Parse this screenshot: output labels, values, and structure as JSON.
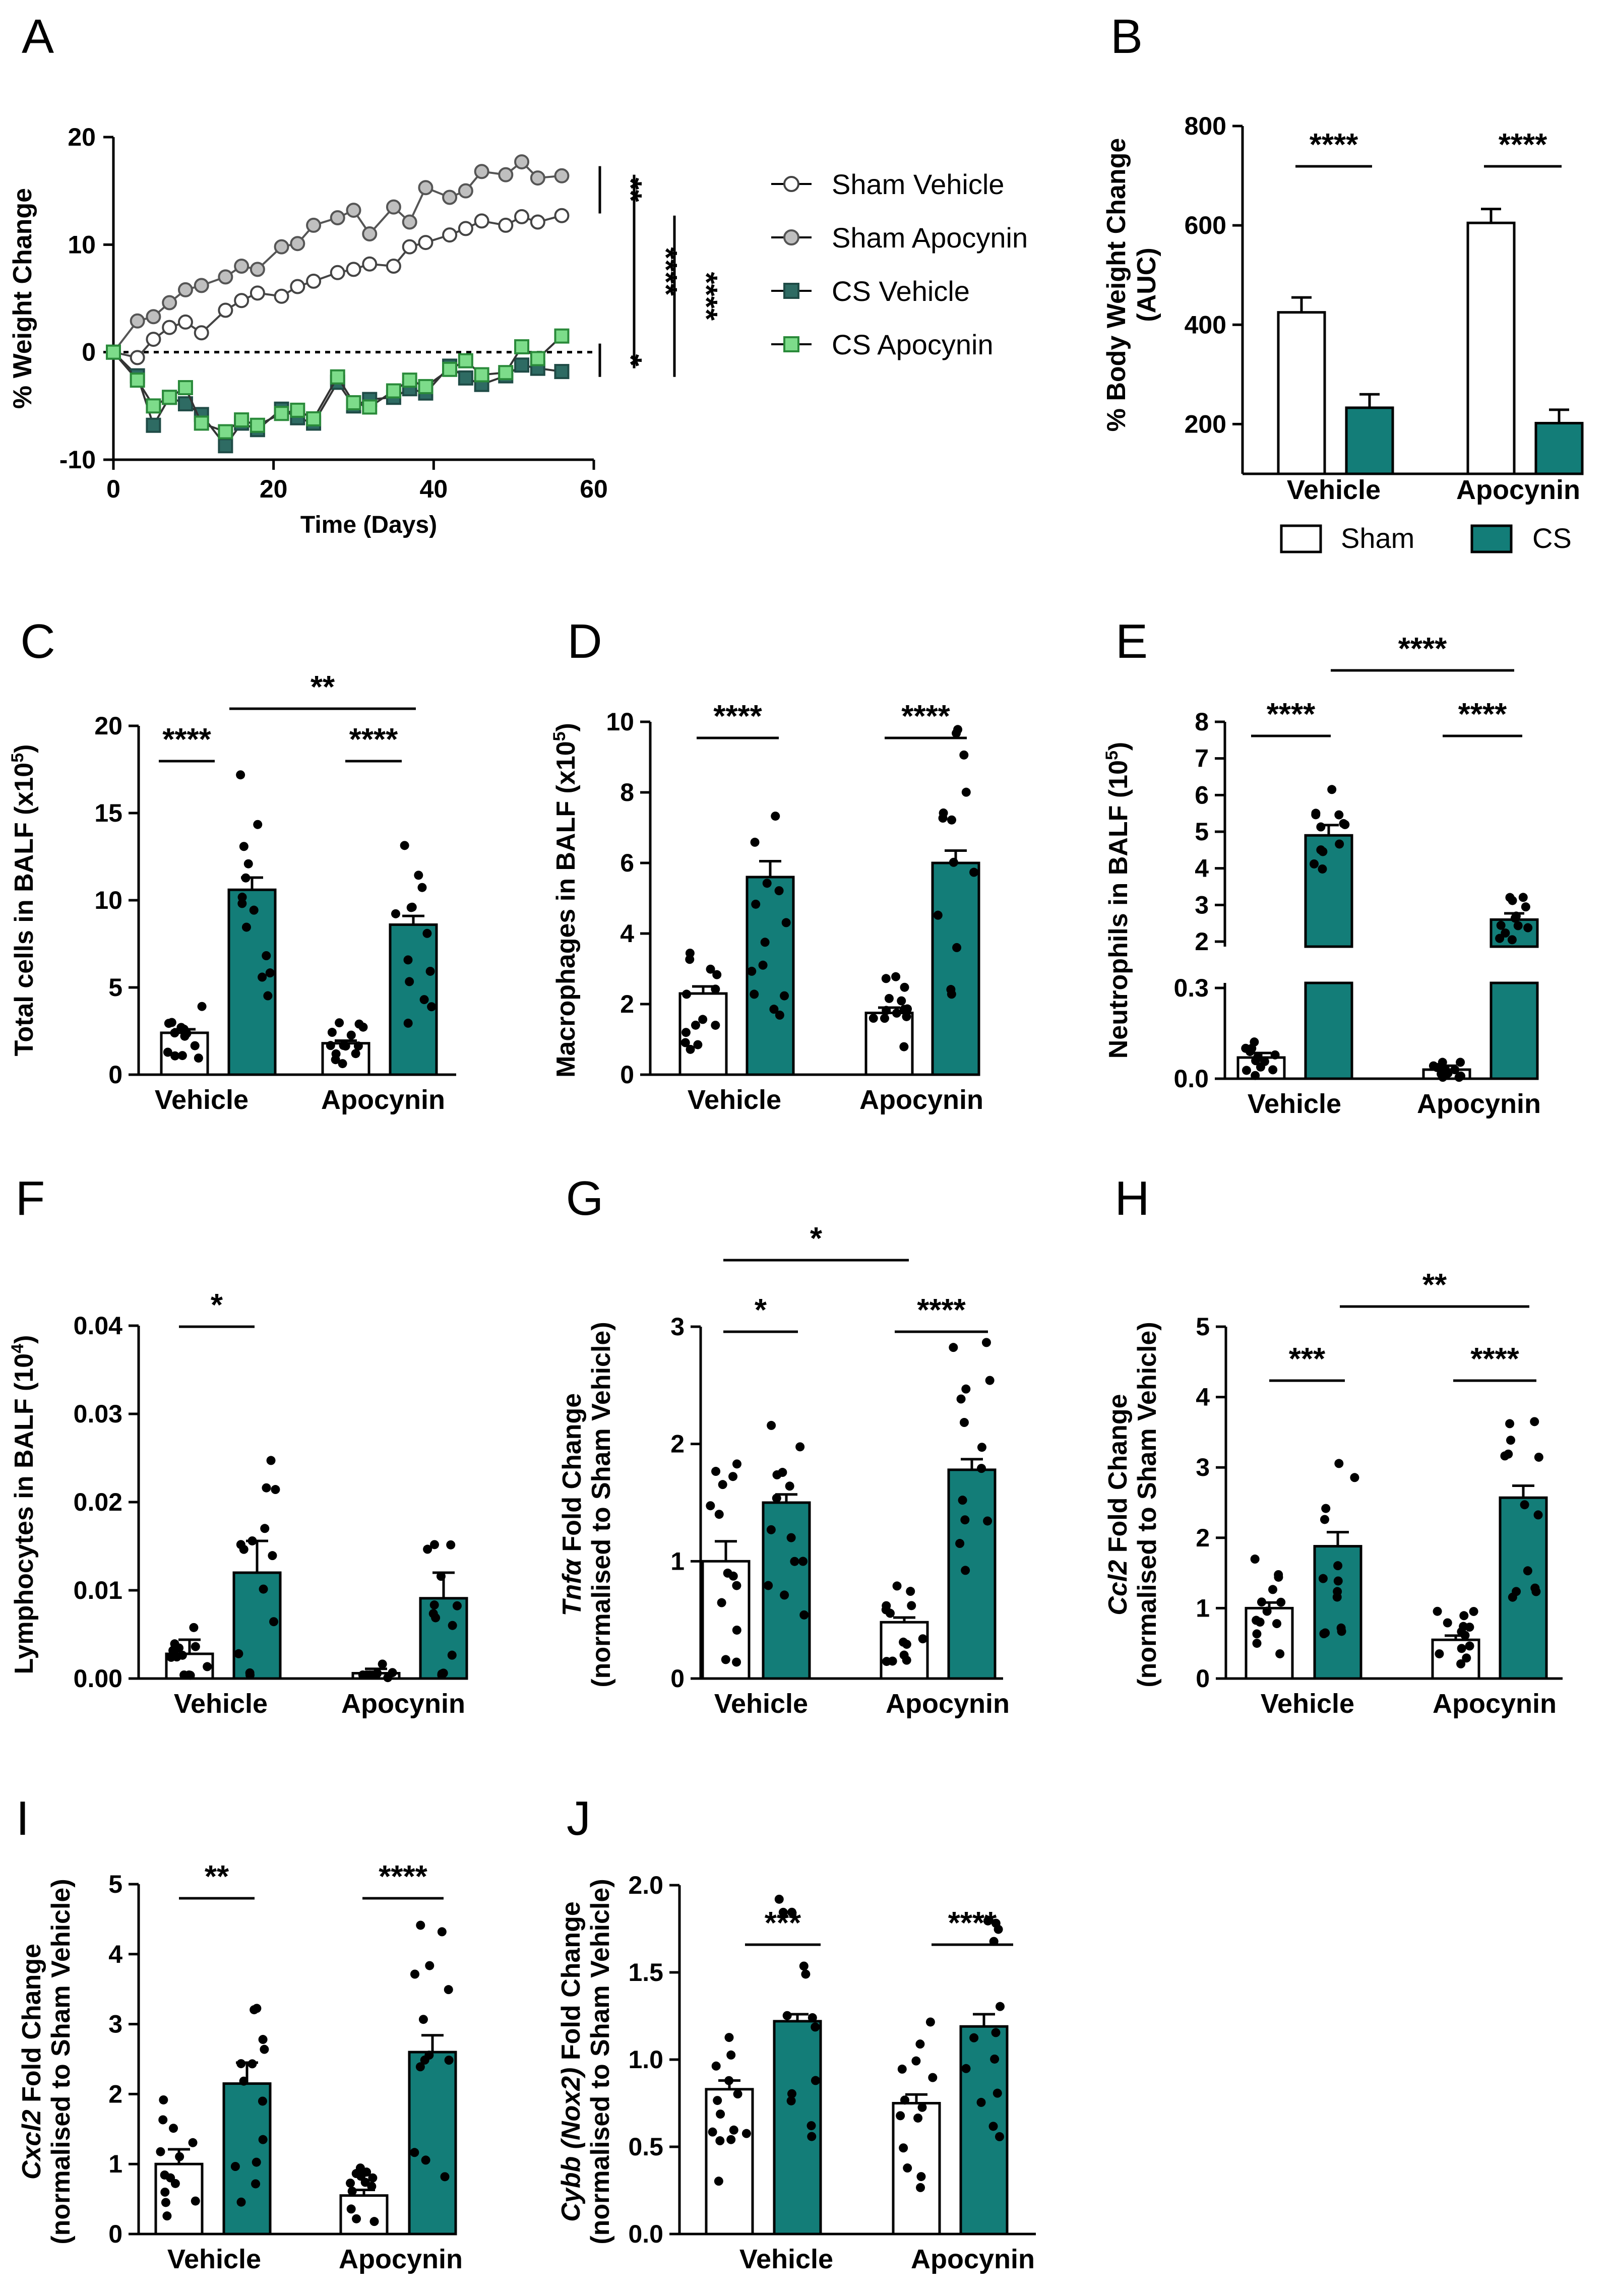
{
  "colors": {
    "sham": "#ffffff",
    "cs": "#137d78",
    "cs_line": "#2e6b63",
    "sham_apocynin": "#bfbfbf",
    "cs_apocynin": "#7ddc8a",
    "axis": "#000000"
  },
  "chart_data": [
    {
      "panel": "A",
      "type": "line",
      "xlabel": "Time (Days)",
      "ylabel": "% Weight Change",
      "xlim": [
        0,
        60
      ],
      "ylim": [
        -10,
        20
      ],
      "xticks": [
        "0",
        "20",
        "40",
        "60"
      ],
      "yticks": [
        "-10",
        "0",
        "10",
        "20"
      ],
      "legend": [
        "Sham Vehicle",
        "Sham Apocynin",
        "CS Vehicle",
        "CS Apocynin"
      ],
      "series": [
        {
          "name": "Sham Vehicle",
          "x": [
            0,
            3,
            5,
            7,
            9,
            11,
            14,
            16,
            18,
            21,
            23,
            25,
            28,
            30,
            32,
            35,
            37,
            39,
            42,
            44,
            46,
            49,
            51,
            53,
            56
          ],
          "y": [
            0,
            -0.5,
            1.2,
            2.3,
            2.8,
            1.8,
            3.9,
            4.8,
            5.5,
            5.2,
            6.1,
            6.6,
            7.4,
            7.7,
            8.2,
            8.0,
            9.8,
            10.2,
            10.9,
            11.5,
            12.2,
            11.8,
            12.6,
            12.1,
            12.7
          ]
        },
        {
          "name": "Sham Apocynin",
          "x": [
            0,
            3,
            5,
            7,
            9,
            11,
            14,
            16,
            18,
            21,
            23,
            25,
            28,
            30,
            32,
            35,
            37,
            39,
            42,
            44,
            46,
            49,
            51,
            53,
            56
          ],
          "y": [
            0,
            2.9,
            3.3,
            4.6,
            5.8,
            6.2,
            7.0,
            8.0,
            7.7,
            9.8,
            10.1,
            11.8,
            12.5,
            13.2,
            11.0,
            13.5,
            12.1,
            15.3,
            14.4,
            15.0,
            16.8,
            16.5,
            17.7,
            16.2,
            16.4
          ]
        },
        {
          "name": "CS Vehicle",
          "x": [
            0,
            3,
            5,
            7,
            9,
            11,
            14,
            16,
            18,
            21,
            23,
            25,
            28,
            30,
            32,
            35,
            37,
            39,
            42,
            44,
            46,
            49,
            51,
            53,
            56
          ],
          "y": [
            0,
            -2.2,
            -6.8,
            -4.2,
            -4.8,
            -5.8,
            -8.7,
            -6.6,
            -7.2,
            -5.3,
            -6.1,
            -6.6,
            -2.8,
            -5.0,
            -4.4,
            -4.2,
            -3.4,
            -3.8,
            -1.3,
            -2.4,
            -3.0,
            -2.2,
            -1.2,
            -1.5,
            -1.8
          ]
        },
        {
          "name": "CS Apocynin",
          "x": [
            0,
            3,
            5,
            7,
            9,
            11,
            14,
            16,
            18,
            21,
            23,
            25,
            28,
            30,
            32,
            35,
            37,
            39,
            42,
            44,
            46,
            49,
            51,
            53,
            56
          ],
          "y": [
            0,
            -2.6,
            -5.0,
            -4.2,
            -3.3,
            -6.6,
            -7.4,
            -6.3,
            -6.8,
            -5.7,
            -5.4,
            -6.2,
            -2.3,
            -4.7,
            -5.1,
            -3.6,
            -2.6,
            -3.2,
            -1.6,
            -0.8,
            -2.1,
            -1.9,
            0.5,
            -0.6,
            1.5
          ]
        }
      ],
      "significance": [
        "**",
        "****",
        "****",
        "*"
      ]
    },
    {
      "panel": "B",
      "type": "bar",
      "ylabel": "% Body Weight Change (AUC)",
      "ylim": [
        100,
        800
      ],
      "yticks": [
        "200",
        "400",
        "600",
        "800"
      ],
      "categories": [
        "Vehicle",
        "Apocynin"
      ],
      "series": [
        {
          "name": "Sham",
          "values": [
            425,
            605
          ],
          "sem": [
            30,
            28
          ]
        },
        {
          "name": "CS",
          "values": [
            233,
            202
          ],
          "sem": [
            27,
            27
          ]
        }
      ],
      "legend": [
        "Sham",
        "CS"
      ],
      "significance": [
        "****",
        "****"
      ]
    },
    {
      "panel": "C",
      "type": "bar",
      "ylabel_pre": "Total cells in BALF (x10",
      "ylabel_sup": "5",
      "ylabel_post": ")",
      "ylim": [
        0,
        20
      ],
      "yticks": [
        "0",
        "5",
        "10",
        "15",
        "20"
      ],
      "categories": [
        "Vehicle",
        "Apocynin"
      ],
      "series": [
        {
          "name": "Sham",
          "values": [
            2.4,
            1.8
          ],
          "sem": [
            0.2,
            0.15
          ]
        },
        {
          "name": "CS",
          "values": [
            10.6,
            8.6
          ],
          "sem": [
            0.7,
            0.5
          ]
        }
      ],
      "significance": [
        "****",
        "****",
        "**"
      ]
    },
    {
      "panel": "D",
      "type": "bar",
      "ylabel_pre": "Macrophages in BALF (x10",
      "ylabel_sup": "5",
      "ylabel_post": ")",
      "ylim": [
        0,
        10
      ],
      "yticks": [
        "0",
        "2",
        "4",
        "6",
        "8",
        "10"
      ],
      "categories": [
        "Vehicle",
        "Apocynin"
      ],
      "series": [
        {
          "name": "Sham",
          "values": [
            2.3,
            1.75
          ],
          "sem": [
            0.2,
            0.15
          ]
        },
        {
          "name": "CS",
          "values": [
            5.6,
            6.0
          ],
          "sem": [
            0.45,
            0.35
          ]
        }
      ],
      "significance": [
        "****",
        "****"
      ]
    },
    {
      "panel": "E",
      "type": "bar",
      "ylabel_pre": "Neutrophils in BALF (10",
      "ylabel_sup": "5",
      "ylabel_post": ")",
      "ylim_lower": [
        0,
        0.3
      ],
      "ylim_upper": [
        2,
        8
      ],
      "yticks": [
        "0.0",
        "0.3",
        "2",
        "3",
        "4",
        "5",
        "6",
        "7",
        "8"
      ],
      "categories": [
        "Vehicle",
        "Apocynin"
      ],
      "series": [
        {
          "name": "Sham",
          "values": [
            0.07,
            0.03
          ],
          "sem": [
            0.015,
            0.013
          ]
        },
        {
          "name": "CS",
          "values": [
            4.9,
            2.6
          ],
          "sem": [
            0.28,
            0.17
          ]
        }
      ],
      "significance": [
        "****",
        "****",
        "****"
      ]
    },
    {
      "panel": "F",
      "type": "bar",
      "ylabel_pre": "Lymphocytes in BALF (10",
      "ylabel_sup": "4",
      "ylabel_post": ")",
      "ylim": [
        0,
        0.04
      ],
      "yticks": [
        "0.00",
        "0.01",
        "0.02",
        "0.03",
        "0.04"
      ],
      "categories": [
        "Vehicle",
        "Apocynin"
      ],
      "series": [
        {
          "name": "Sham",
          "values": [
            0.0028,
            0.0006
          ],
          "sem": [
            0.0016,
            0.0005
          ]
        },
        {
          "name": "CS",
          "values": [
            0.012,
            0.0091
          ],
          "sem": [
            0.0036,
            0.0029
          ]
        }
      ],
      "significance": [
        "*"
      ]
    },
    {
      "panel": "G",
      "type": "bar",
      "ylabel_gene": "Tnfα",
      "ylabel_rest": " Fold Change",
      "ylabel_line2": "(normalised to Sham Vehicle)",
      "ylim": [
        0,
        3
      ],
      "yticks": [
        "0",
        "1",
        "2",
        "3"
      ],
      "categories": [
        "Vehicle",
        "Apocynin"
      ],
      "series": [
        {
          "name": "Sham",
          "values": [
            1.0,
            0.48
          ],
          "sem": [
            0.17,
            0.04
          ]
        },
        {
          "name": "CS",
          "values": [
            1.5,
            1.78
          ],
          "sem": [
            0.07,
            0.09
          ]
        }
      ],
      "significance": [
        "*",
        "****",
        "*"
      ]
    },
    {
      "panel": "H",
      "type": "bar",
      "ylabel_gene": "Ccl2",
      "ylabel_rest": " Fold Change",
      "ylabel_line2": "(normalised to Sham Vehicle)",
      "ylim": [
        0,
        5
      ],
      "yticks": [
        "0",
        "1",
        "2",
        "3",
        "4",
        "5"
      ],
      "categories": [
        "Vehicle",
        "Apocynin"
      ],
      "series": [
        {
          "name": "Sham",
          "values": [
            1.0,
            0.55
          ],
          "sem": [
            0.08,
            0.06
          ]
        },
        {
          "name": "CS",
          "values": [
            1.88,
            2.57
          ],
          "sem": [
            0.2,
            0.17
          ]
        }
      ],
      "significance": [
        "***",
        "****",
        "**"
      ]
    },
    {
      "panel": "I",
      "type": "bar",
      "ylabel_gene": "Cxcl2",
      "ylabel_rest": " Fold Change",
      "ylabel_line2": "(normalised to Sham Vehicle)",
      "ylim": [
        0,
        5
      ],
      "yticks": [
        "0",
        "1",
        "2",
        "3",
        "4",
        "5"
      ],
      "categories": [
        "Vehicle",
        "Apocynin"
      ],
      "series": [
        {
          "name": "Sham",
          "values": [
            1.0,
            0.55
          ],
          "sem": [
            0.21,
            0.08
          ]
        },
        {
          "name": "CS",
          "values": [
            2.15,
            2.6
          ],
          "sem": [
            0.3,
            0.24
          ]
        }
      ],
      "significance": [
        "**",
        "****"
      ]
    },
    {
      "panel": "J",
      "type": "bar",
      "ylabel_gene": "Cybb (Nox2)",
      "ylabel_rest": " Fold Change",
      "ylabel_line2": "(normalised to Sham Vehicle)",
      "ylim": [
        0,
        2
      ],
      "yticks": [
        "0.0",
        "0.5",
        "1.0",
        "1.5",
        "2.0"
      ],
      "categories": [
        "Vehicle",
        "Apocynin"
      ],
      "series": [
        {
          "name": "Sham",
          "values": [
            0.83,
            0.75
          ],
          "sem": [
            0.05,
            0.05
          ]
        },
        {
          "name": "CS",
          "values": [
            1.22,
            1.19
          ],
          "sem": [
            0.04,
            0.07
          ]
        }
      ],
      "significance": [
        "***",
        "****"
      ]
    }
  ]
}
